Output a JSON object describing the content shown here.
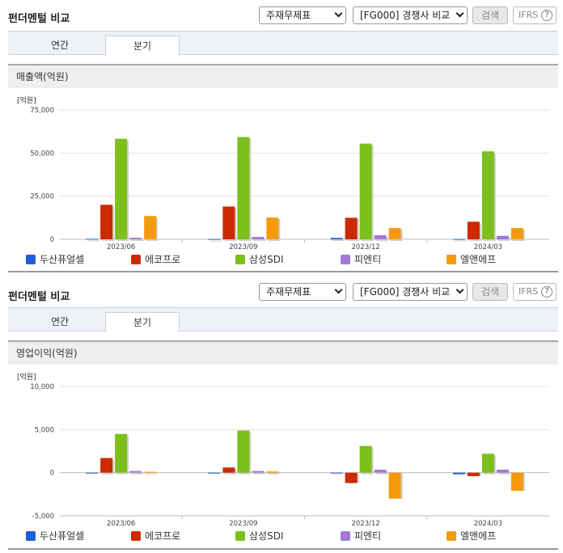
{
  "sections": [
    {
      "title": "펀더멘털 비교",
      "select_report": "주재무제표",
      "select_compare": "[FG000] 경쟁사 비교",
      "search_label": "검색",
      "ifrs_label": "IFRS",
      "help_label": "?",
      "tabs": [
        {
          "label": "연간"
        },
        {
          "label": "분기"
        }
      ],
      "active_tab": "분기",
      "metric_label": "매출액(억원)",
      "unit_label": "[억원]"
    },
    {
      "title": "펀더멘털 비교",
      "select_report": "주재무제표",
      "select_compare": "[FG000] 경쟁사 비교",
      "search_label": "검색",
      "ifrs_label": "IFRS",
      "help_label": "?",
      "tabs": [
        {
          "label": "연간"
        },
        {
          "label": "분기"
        }
      ],
      "active_tab": "분기",
      "metric_label": "영업이익(억원)",
      "unit_label": "[억원]"
    }
  ],
  "chart_data": [
    {
      "type": "bar",
      "ylabel": "[억원]",
      "categories": [
        "2023/06",
        "2023/09",
        "2023/12",
        "2024/03"
      ],
      "ylim": [
        0,
        75000
      ],
      "yticks": [
        0,
        25000,
        50000,
        75000
      ],
      "ytick_labels": [
        "0",
        "25,000",
        "50,000",
        "75,000"
      ],
      "grid": true,
      "legend_position": "bottom",
      "series": [
        {
          "name": "두산퓨얼셀",
          "color": "#1f5fd6",
          "values": [
            300,
            200,
            800,
            200
          ]
        },
        {
          "name": "에코프로",
          "color": "#cc2a00",
          "values": [
            20000,
            19000,
            12500,
            10200
          ]
        },
        {
          "name": "삼성SDI",
          "color": "#7dbf1d",
          "values": [
            58300,
            59300,
            55500,
            51000
          ]
        },
        {
          "name": "피엔티",
          "color": "#a47ad6",
          "values": [
            900,
            1400,
            2400,
            2000
          ]
        },
        {
          "name": "엘앤에프",
          "color": "#f59a0c",
          "values": [
            13500,
            12600,
            6500,
            6500
          ]
        }
      ]
    },
    {
      "type": "bar",
      "ylabel": "[억원]",
      "categories": [
        "2023/06",
        "2023/09",
        "2023/12",
        "2024/03"
      ],
      "ylim": [
        -5000,
        10000
      ],
      "yticks": [
        -5000,
        0,
        5000,
        10000
      ],
      "ytick_labels": [
        "-5,000",
        "0",
        "5,000",
        "10,000"
      ],
      "grid": true,
      "legend_position": "bottom",
      "series": [
        {
          "name": "두산퓨얼셀",
          "color": "#1f5fd6",
          "values": [
            -20,
            -20,
            -40,
            -180
          ]
        },
        {
          "name": "에코프로",
          "color": "#cc2a00",
          "values": [
            1700,
            600,
            -1200,
            -400
          ]
        },
        {
          "name": "삼성SDI",
          "color": "#7dbf1d",
          "values": [
            4500,
            4900,
            3100,
            2200
          ]
        },
        {
          "name": "피엔티",
          "color": "#a47ad6",
          "values": [
            200,
            200,
            350,
            350
          ]
        },
        {
          "name": "엘앤에프",
          "color": "#f59a0c",
          "values": [
            100,
            150,
            -3000,
            -2100
          ]
        }
      ]
    }
  ]
}
